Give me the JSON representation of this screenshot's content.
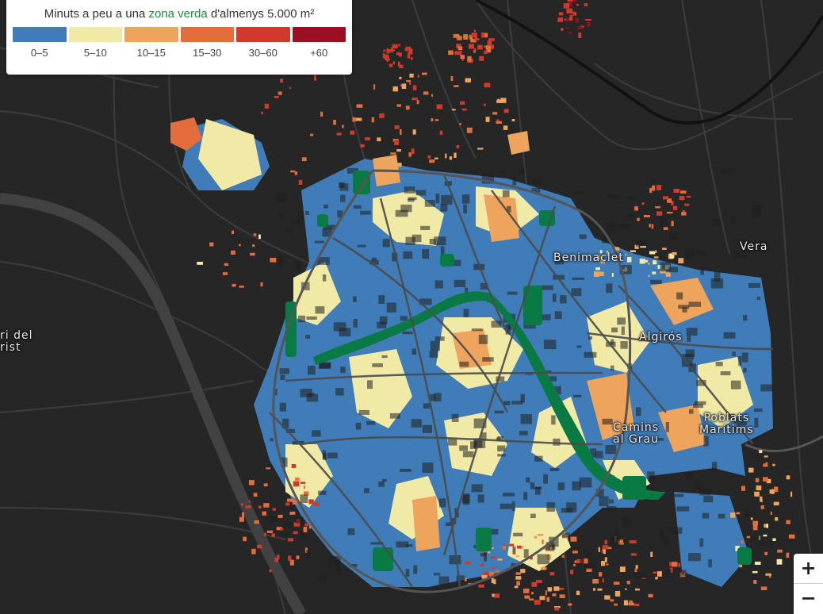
{
  "legend": {
    "title_prefix": "Minuts a peu a una ",
    "title_highlight": "zona verda",
    "title_suffix": " d'almenys 5.000 m²",
    "highlight_color": "#1a8f3c",
    "classes": [
      {
        "label": "0–5",
        "color": "#3f7cb8"
      },
      {
        "label": "5–10",
        "color": "#f1eaa6"
      },
      {
        "label": "10–15",
        "color": "#eea45c"
      },
      {
        "label": "15–30",
        "color": "#e36e3c"
      },
      {
        "label": "30–60",
        "color": "#cf3a2c"
      },
      {
        "label": "+60",
        "color": "#9c0e22"
      }
    ]
  },
  "map": {
    "background_color": "#262626",
    "road_color": "#3b3b3b",
    "park_color": "#0a7a45",
    "river_park_color": "#0a7a45"
  },
  "places": [
    {
      "name": "Benimaclet"
    },
    {
      "name": "Vera"
    },
    {
      "name": "Algirós"
    },
    {
      "name": "Camins\nal Grau"
    },
    {
      "name": "Poblats\nMarítims"
    },
    {
      "name": "ri del\nrist"
    }
  ],
  "zoom": {
    "in_label": "+",
    "out_label": "−"
  }
}
